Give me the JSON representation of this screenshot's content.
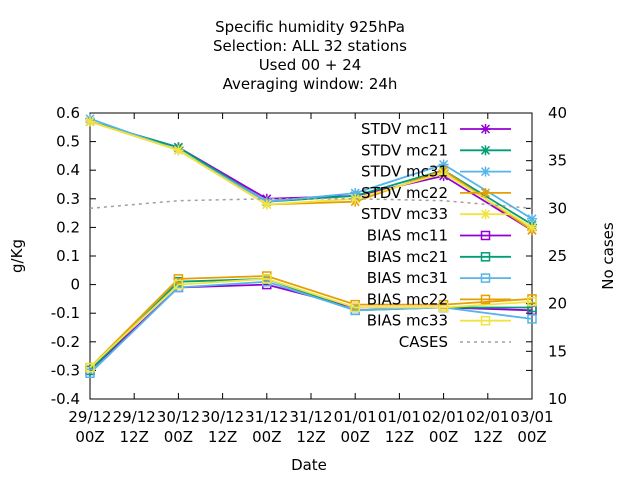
{
  "chart_data": {
    "type": "line",
    "title_lines": [
      "Specific humidity 925hPa",
      "Selection: ALL      32 stations",
      "Used  00 + 24",
      "Averaging window: 24h"
    ],
    "xlabel": "Date",
    "ylabel": "g/Kg",
    "y2label": "No cases",
    "ylim": [
      -0.4,
      0.6
    ],
    "y2lim": [
      10,
      40
    ],
    "yticks": [
      "-0.4",
      "-0.3",
      "-0.2",
      "-0.1",
      "0",
      "0.1",
      "0.2",
      "0.3",
      "0.4",
      "0.5",
      "0.6"
    ],
    "y2ticks": [
      "10",
      "15",
      "20",
      "25",
      "30",
      "35",
      "40"
    ],
    "xticks": [
      {
        "l1": "29/12",
        "l2": "00Z"
      },
      {
        "l1": "29/12",
        "l2": "12Z"
      },
      {
        "l1": "30/12",
        "l2": "00Z"
      },
      {
        "l1": "30/12",
        "l2": "12Z"
      },
      {
        "l1": "31/12",
        "l2": "00Z"
      },
      {
        "l1": "31/12",
        "l2": "12Z"
      },
      {
        "l1": "01/01",
        "l2": "00Z"
      },
      {
        "l1": "01/01",
        "l2": "12Z"
      },
      {
        "l1": "02/01",
        "l2": "00Z"
      },
      {
        "l1": "02/01",
        "l2": "12Z"
      },
      {
        "l1": "03/01",
        "l2": "00Z"
      }
    ],
    "x_index": [
      0,
      2,
      4,
      6,
      8,
      10
    ],
    "legend_position": "top-right",
    "series": [
      {
        "name": "STDV mc11",
        "color": "#9400d3",
        "marker": "x",
        "values": [
          0.57,
          0.48,
          0.3,
          0.31,
          0.38,
          0.19
        ]
      },
      {
        "name": "STDV mc21",
        "color": "#009e73",
        "marker": "x",
        "values": [
          0.57,
          0.48,
          0.29,
          0.31,
          0.4,
          0.21
        ]
      },
      {
        "name": "STDV mc31",
        "color": "#56b4e9",
        "marker": "x",
        "values": [
          0.58,
          0.47,
          0.29,
          0.32,
          0.42,
          0.23
        ]
      },
      {
        "name": "STDV mc22",
        "color": "#e69f00",
        "marker": "x",
        "values": [
          0.57,
          0.47,
          0.28,
          0.29,
          0.4,
          0.19
        ]
      },
      {
        "name": "STDV mc33",
        "color": "#f0e442",
        "marker": "x",
        "values": [
          0.57,
          0.47,
          0.28,
          0.3,
          0.39,
          0.2
        ]
      },
      {
        "name": "BIAS mc11",
        "color": "#9400d3",
        "marker": "square",
        "values": [
          -0.3,
          -0.01,
          0.0,
          -0.08,
          -0.08,
          -0.09
        ]
      },
      {
        "name": "BIAS mc21",
        "color": "#009e73",
        "marker": "square",
        "values": [
          -0.3,
          0.01,
          0.02,
          -0.09,
          -0.08,
          -0.08
        ]
      },
      {
        "name": "BIAS mc31",
        "color": "#56b4e9",
        "marker": "square",
        "values": [
          -0.31,
          -0.01,
          0.01,
          -0.09,
          -0.08,
          -0.12
        ]
      },
      {
        "name": "BIAS mc22",
        "color": "#e69f00",
        "marker": "square",
        "values": [
          -0.29,
          0.02,
          0.03,
          -0.07,
          -0.07,
          -0.05
        ]
      },
      {
        "name": "BIAS mc33",
        "color": "#f0e442",
        "marker": "square",
        "values": [
          -0.29,
          0.0,
          0.02,
          -0.08,
          -0.08,
          -0.06
        ]
      },
      {
        "name": "CASES",
        "color": "#a0a0a0",
        "marker": "none",
        "dashed": true,
        "axis": "y2",
        "values": [
          30.0,
          30.8,
          31.0,
          31.0,
          30.8,
          30.0
        ]
      }
    ]
  }
}
